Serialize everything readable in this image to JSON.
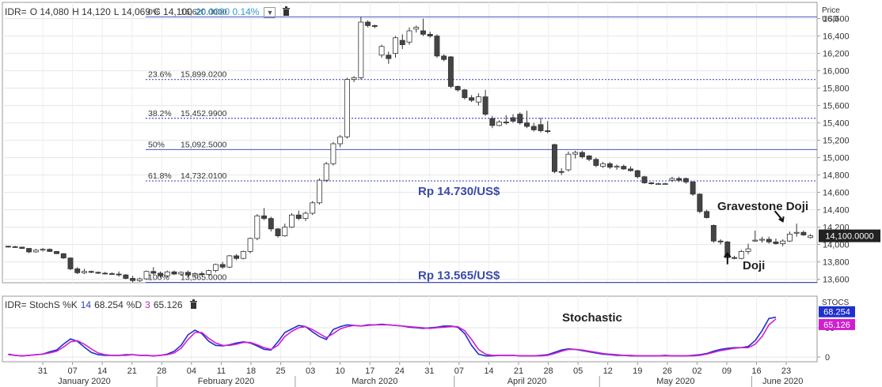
{
  "header": {
    "symbol": "IDR=",
    "open": "O 14,080",
    "high": "H 14,120",
    "low": "L 14,069",
    "close": "C 14,100",
    "change": "20.0000 0.14%"
  },
  "stoch_header": {
    "label": "IDR= StochS %K",
    "k_period": "14",
    "k_value": "68.254",
    "d_label": "%D",
    "d_period": "3",
    "d_value": "65.126"
  },
  "colors": {
    "up_candle": "#ffffff",
    "down_candle": "#444444",
    "fib_line": "#4453c4",
    "k_line": "#1f2fd0",
    "d_line": "#d01fd0",
    "annotation": "#3a4aa8"
  },
  "chart_data": [
    {
      "type": "candlestick",
      "title": "",
      "ylabel": "Price USD",
      "ylim": [
        13560,
        16760
      ],
      "yticks": [
        "13,600",
        "13,800",
        "14,000",
        "14,200",
        "14,400",
        "14,600",
        "14,800",
        "15,000",
        "15,200",
        "15,400",
        "15,600",
        "15,800",
        "16,000",
        "16,200",
        "16,400",
        "16,600"
      ],
      "last_price_label": "14,100.0000",
      "fibonacci_levels": [
        {
          "label": "0%",
          "price_text": "16,620.0000",
          "value": 16620
        },
        {
          "label": "23.6%",
          "price_text": "15,899.0200",
          "value": 15899.02
        },
        {
          "label": "38.2%",
          "price_text": "15,452.9900",
          "value": 15452.99
        },
        {
          "label": "50%",
          "price_text": "15,092.5000",
          "value": 15092.5
        },
        {
          "label": "61.8%",
          "price_text": "14,732.0100",
          "value": 14732.01
        },
        {
          "label": "100%",
          "price_text": "13,565.0000",
          "value": 13565
        }
      ],
      "annotations": {
        "fib_618_note": "Rp 14.730/US$",
        "fib_100_note": "Rp 13.565/US$",
        "gravestone": "Gravestone Doji",
        "doji": "Doji",
        "stochastic": "Stochastic"
      },
      "candles": [
        {
          "o": 13980,
          "h": 13985,
          "l": 13965,
          "c": 13975
        },
        {
          "o": 13975,
          "h": 13985,
          "l": 13960,
          "c": 13970
        },
        {
          "o": 13970,
          "h": 13975,
          "l": 13950,
          "c": 13955
        },
        {
          "o": 13955,
          "h": 13960,
          "l": 13900,
          "c": 13915
        },
        {
          "o": 13915,
          "h": 13950,
          "l": 13905,
          "c": 13935
        },
        {
          "o": 13935,
          "h": 13960,
          "l": 13920,
          "c": 13945
        },
        {
          "o": 13945,
          "h": 13955,
          "l": 13915,
          "c": 13920
        },
        {
          "o": 13920,
          "h": 13925,
          "l": 13890,
          "c": 13895
        },
        {
          "o": 13895,
          "h": 13900,
          "l": 13835,
          "c": 13845
        },
        {
          "o": 13845,
          "h": 13850,
          "l": 13705,
          "c": 13720
        },
        {
          "o": 13720,
          "h": 13740,
          "l": 13660,
          "c": 13675
        },
        {
          "o": 13675,
          "h": 13720,
          "l": 13660,
          "c": 13690
        },
        {
          "o": 13690,
          "h": 13700,
          "l": 13670,
          "c": 13680
        },
        {
          "o": 13680,
          "h": 13690,
          "l": 13660,
          "c": 13670
        },
        {
          "o": 13670,
          "h": 13685,
          "l": 13655,
          "c": 13665
        },
        {
          "o": 13665,
          "h": 13680,
          "l": 13650,
          "c": 13660
        },
        {
          "o": 13660,
          "h": 13690,
          "l": 13630,
          "c": 13650
        },
        {
          "o": 13650,
          "h": 13660,
          "l": 13600,
          "c": 13610
        },
        {
          "o": 13610,
          "h": 13640,
          "l": 13565,
          "c": 13585
        },
        {
          "o": 13585,
          "h": 13620,
          "l": 13570,
          "c": 13605
        },
        {
          "o": 13605,
          "h": 13700,
          "l": 13590,
          "c": 13690
        },
        {
          "o": 13690,
          "h": 13740,
          "l": 13650,
          "c": 13670
        },
        {
          "o": 13670,
          "h": 13690,
          "l": 13620,
          "c": 13640
        },
        {
          "o": 13640,
          "h": 13700,
          "l": 13620,
          "c": 13685
        },
        {
          "o": 13685,
          "h": 13700,
          "l": 13650,
          "c": 13660
        },
        {
          "o": 13660,
          "h": 13690,
          "l": 13640,
          "c": 13680
        },
        {
          "o": 13680,
          "h": 13700,
          "l": 13630,
          "c": 13650
        },
        {
          "o": 13650,
          "h": 13680,
          "l": 13620,
          "c": 13665
        },
        {
          "o": 13665,
          "h": 13690,
          "l": 13640,
          "c": 13655
        },
        {
          "o": 13655,
          "h": 13710,
          "l": 13640,
          "c": 13700
        },
        {
          "o": 13700,
          "h": 13780,
          "l": 13680,
          "c": 13770
        },
        {
          "o": 13770,
          "h": 13800,
          "l": 13720,
          "c": 13740
        },
        {
          "o": 13740,
          "h": 13880,
          "l": 13730,
          "c": 13870
        },
        {
          "o": 13870,
          "h": 13890,
          "l": 13820,
          "c": 13840
        },
        {
          "o": 13840,
          "h": 13930,
          "l": 13830,
          "c": 13920
        },
        {
          "o": 13920,
          "h": 14080,
          "l": 13900,
          "c": 14070
        },
        {
          "o": 14070,
          "h": 14350,
          "l": 14050,
          "c": 14330
        },
        {
          "o": 14330,
          "h": 14420,
          "l": 14280,
          "c": 14300
        },
        {
          "o": 14300,
          "h": 14320,
          "l": 14150,
          "c": 14180
        },
        {
          "o": 14180,
          "h": 14190,
          "l": 14080,
          "c": 14100
        },
        {
          "o": 14100,
          "h": 14240,
          "l": 14090,
          "c": 14200
        },
        {
          "o": 14200,
          "h": 14360,
          "l": 14190,
          "c": 14340
        },
        {
          "o": 14340,
          "h": 14390,
          "l": 14280,
          "c": 14300
        },
        {
          "o": 14300,
          "h": 14380,
          "l": 14270,
          "c": 14360
        },
        {
          "o": 14360,
          "h": 14500,
          "l": 14340,
          "c": 14480
        },
        {
          "o": 14480,
          "h": 14760,
          "l": 14460,
          "c": 14740
        },
        {
          "o": 14740,
          "h": 14950,
          "l": 14720,
          "c": 14930
        },
        {
          "o": 14930,
          "h": 15180,
          "l": 14910,
          "c": 15160
        },
        {
          "o": 15160,
          "h": 15260,
          "l": 15120,
          "c": 15240
        },
        {
          "o": 15240,
          "h": 15920,
          "l": 15220,
          "c": 15900
        },
        {
          "o": 15900,
          "h": 15940,
          "l": 15870,
          "c": 15920
        },
        {
          "o": 15920,
          "h": 16620,
          "l": 15900,
          "c": 16560
        },
        {
          "o": 16560,
          "h": 16580,
          "l": 16500,
          "c": 16520
        },
        {
          "o": 16520,
          "h": 16530,
          "l": 16490,
          "c": 16510
        },
        {
          "o": 16180,
          "h": 16300,
          "l": 16150,
          "c": 16280
        },
        {
          "o": 16180,
          "h": 16220,
          "l": 16080,
          "c": 16140
        },
        {
          "o": 16200,
          "h": 16400,
          "l": 16150,
          "c": 16380
        },
        {
          "o": 16350,
          "h": 16420,
          "l": 16250,
          "c": 16300
        },
        {
          "o": 16330,
          "h": 16500,
          "l": 16300,
          "c": 16460
        },
        {
          "o": 16480,
          "h": 16520,
          "l": 16440,
          "c": 16500
        },
        {
          "o": 16460,
          "h": 16600,
          "l": 16400,
          "c": 16420
        },
        {
          "o": 16420,
          "h": 16450,
          "l": 16380,
          "c": 16400
        },
        {
          "o": 16400,
          "h": 16420,
          "l": 16150,
          "c": 16170
        },
        {
          "o": 16170,
          "h": 16190,
          "l": 16110,
          "c": 16130
        },
        {
          "o": 16160,
          "h": 16170,
          "l": 15800,
          "c": 15820
        },
        {
          "o": 15820,
          "h": 15830,
          "l": 15760,
          "c": 15780
        },
        {
          "o": 15780,
          "h": 15790,
          "l": 15670,
          "c": 15690
        },
        {
          "o": 15690,
          "h": 15720,
          "l": 15640,
          "c": 15660
        },
        {
          "o": 15640,
          "h": 15740,
          "l": 15600,
          "c": 15700
        },
        {
          "o": 15700,
          "h": 15780,
          "l": 15480,
          "c": 15500
        },
        {
          "o": 15450,
          "h": 15480,
          "l": 15340,
          "c": 15370
        },
        {
          "o": 15370,
          "h": 15430,
          "l": 15360,
          "c": 15410
        },
        {
          "o": 15410,
          "h": 15490,
          "l": 15380,
          "c": 15400
        },
        {
          "o": 15460,
          "h": 15500,
          "l": 15400,
          "c": 15420
        },
        {
          "o": 15500,
          "h": 15520,
          "l": 15380,
          "c": 15400
        },
        {
          "o": 15400,
          "h": 15540,
          "l": 15340,
          "c": 15360
        },
        {
          "o": 15360,
          "h": 15400,
          "l": 15300,
          "c": 15320
        },
        {
          "o": 15380,
          "h": 15460,
          "l": 15290,
          "c": 15310
        },
        {
          "o": 15310,
          "h": 15420,
          "l": 15280,
          "c": 15300
        },
        {
          "o": 15150,
          "h": 15160,
          "l": 14820,
          "c": 14840
        },
        {
          "o": 14840,
          "h": 14880,
          "l": 14800,
          "c": 14830
        },
        {
          "o": 14860,
          "h": 15070,
          "l": 14840,
          "c": 15040
        },
        {
          "o": 15040,
          "h": 15080,
          "l": 14990,
          "c": 15060
        },
        {
          "o": 15060,
          "h": 15080,
          "l": 14990,
          "c": 15010
        },
        {
          "o": 15020,
          "h": 15030,
          "l": 14960,
          "c": 14980
        },
        {
          "o": 14980,
          "h": 15000,
          "l": 14890,
          "c": 14910
        },
        {
          "o": 14900,
          "h": 14950,
          "l": 14880,
          "c": 14930
        },
        {
          "o": 14930,
          "h": 14950,
          "l": 14870,
          "c": 14890
        },
        {
          "o": 14890,
          "h": 14920,
          "l": 14860,
          "c": 14900
        },
        {
          "o": 14900,
          "h": 14920,
          "l": 14860,
          "c": 14870
        },
        {
          "o": 14870,
          "h": 14900,
          "l": 14840,
          "c": 14850
        },
        {
          "o": 14850,
          "h": 14860,
          "l": 14760,
          "c": 14780
        },
        {
          "o": 14780,
          "h": 14790,
          "l": 14700,
          "c": 14710
        },
        {
          "o": 14710,
          "h": 14720,
          "l": 14690,
          "c": 14700
        },
        {
          "o": 14700,
          "h": 14710,
          "l": 14690,
          "c": 14700
        },
        {
          "o": 14700,
          "h": 14710,
          "l": 14690,
          "c": 14700
        },
        {
          "o": 14740,
          "h": 14780,
          "l": 14720,
          "c": 14760
        },
        {
          "o": 14760,
          "h": 14780,
          "l": 14720,
          "c": 14740
        },
        {
          "o": 14760,
          "h": 14770,
          "l": 14700,
          "c": 14720
        },
        {
          "o": 14720,
          "h": 14730,
          "l": 14560,
          "c": 14580
        },
        {
          "o": 14580,
          "h": 14590,
          "l": 14360,
          "c": 14380
        },
        {
          "o": 14380,
          "h": 14400,
          "l": 14300,
          "c": 14310
        },
        {
          "o": 14220,
          "h": 14230,
          "l": 14020,
          "c": 14040
        },
        {
          "o": 14040,
          "h": 14060,
          "l": 14000,
          "c": 14030
        },
        {
          "o": 14030,
          "h": 14040,
          "l": 13840,
          "c": 13850
        },
        {
          "o": 13850,
          "h": 13870,
          "l": 13830,
          "c": 13840
        },
        {
          "o": 13840,
          "h": 13940,
          "l": 13830,
          "c": 13920
        },
        {
          "o": 13920,
          "h": 14010,
          "l": 13890,
          "c": 13950
        },
        {
          "o": 14040,
          "h": 14160,
          "l": 14030,
          "c": 14050
        },
        {
          "o": 14050,
          "h": 14090,
          "l": 14020,
          "c": 14060
        },
        {
          "o": 14060,
          "h": 14090,
          "l": 14010,
          "c": 14030
        },
        {
          "o": 14030,
          "h": 14070,
          "l": 14000,
          "c": 14010
        },
        {
          "o": 14010,
          "h": 14060,
          "l": 13980,
          "c": 14040
        },
        {
          "o": 14040,
          "h": 14150,
          "l": 14030,
          "c": 14120
        },
        {
          "o": 14130,
          "h": 14240,
          "l": 14090,
          "c": 14140
        },
        {
          "o": 14140,
          "h": 14160,
          "l": 14100,
          "c": 14110
        },
        {
          "o": 14080,
          "h": 14120,
          "l": 14069,
          "c": 14100
        }
      ]
    },
    {
      "type": "line",
      "title": "",
      "ylim": [
        -8,
        100
      ],
      "yticks": [
        "0",
        "50"
      ],
      "x_tick_labels": [
        "31",
        "07",
        "14",
        "21",
        "28",
        "04",
        "11",
        "18",
        "25",
        "03",
        "10",
        "17",
        "24",
        "31",
        "07",
        "14",
        "21",
        "28",
        "05",
        "12",
        "19",
        "26",
        "02",
        "09",
        "16",
        "23"
      ],
      "month_labels": [
        "January 2020",
        "February 2020",
        "March 2020",
        "April 2020",
        "May 2020",
        "June 2020"
      ],
      "series": [
        {
          "name": "%K",
          "values": [
            5,
            3,
            2,
            3,
            4,
            5,
            9,
            12,
            22,
            31,
            27,
            17,
            8,
            4,
            3,
            3,
            3,
            4,
            4,
            3,
            3,
            2,
            3,
            5,
            10,
            20,
            38,
            46,
            40,
            27,
            20,
            19,
            21,
            24,
            26,
            24,
            19,
            13,
            12,
            26,
            42,
            48,
            54,
            52,
            43,
            35,
            30,
            47,
            52,
            55,
            54,
            53,
            55,
            55,
            56,
            55,
            54,
            53,
            51,
            50,
            49,
            50,
            51,
            53,
            53,
            51,
            40,
            20,
            5,
            2,
            2,
            3,
            3,
            3,
            2,
            2,
            2,
            3,
            4,
            8,
            12,
            14,
            13,
            11,
            9,
            7,
            5,
            4,
            3,
            3,
            2,
            2,
            2,
            2,
            2,
            3,
            2,
            2,
            2,
            3,
            4,
            6,
            10,
            13,
            15,
            16,
            16,
            18,
            28,
            45,
            66,
            68
          ]
        },
        {
          "name": "%D",
          "values": [
            4,
            3,
            2,
            3,
            4,
            5,
            7,
            10,
            17,
            26,
            28,
            22,
            14,
            7,
            4,
            3,
            3,
            3,
            4,
            3,
            3,
            2,
            3,
            4,
            7,
            15,
            30,
            42,
            42,
            32,
            24,
            20,
            20,
            22,
            25,
            25,
            21,
            16,
            13,
            20,
            35,
            44,
            50,
            52,
            47,
            40,
            33,
            40,
            48,
            52,
            54,
            53,
            54,
            55,
            55,
            55,
            54,
            53,
            52,
            51,
            50,
            49,
            50,
            51,
            52,
            52,
            45,
            30,
            13,
            5,
            3,
            3,
            3,
            3,
            2,
            2,
            2,
            2,
            3,
            6,
            10,
            13,
            13,
            12,
            10,
            8,
            6,
            5,
            4,
            3,
            3,
            2,
            2,
            2,
            2,
            2,
            2,
            2,
            2,
            2,
            3,
            5,
            8,
            11,
            13,
            15,
            16,
            16,
            22,
            35,
            55,
            65
          ]
        }
      ],
      "k_last_label": "68.254",
      "d_last_label": "65.126"
    }
  ]
}
